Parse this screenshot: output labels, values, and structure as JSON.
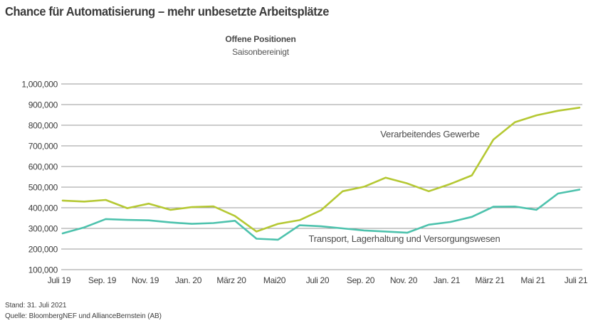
{
  "title": "Chance für Automatisierung – mehr unbesetzte Arbeitsplätze",
  "subtitle": {
    "line1": "Offene Positionen",
    "line2": "Saisonbereinigt"
  },
  "footer": {
    "stand": "Stand: 31. Juli 2021",
    "source": "Quelle: BloombergNEF und AllianceBernstein (AB)"
  },
  "colors": {
    "manufacturing_line": "#b5c833",
    "transport_line": "#4dc2ad",
    "gridline": "#9a9a9a",
    "text": "#3d3d3d"
  },
  "chart_data": {
    "type": "line",
    "title": "Offene Positionen",
    "subtitle": "Saisonbereinigt",
    "grid": true,
    "ylim": [
      100000,
      1000000
    ],
    "y_tick_step": 100000,
    "x_tick_labels": [
      "Juli 19",
      "Sep. 19",
      "Nov. 19",
      "Jan. 20",
      "März 20",
      "Mai20",
      "Juli 20",
      "Sep. 20",
      "Nov. 20",
      "Jan. 21",
      "März 21",
      "Mai 21",
      "Juli 21"
    ],
    "x_months": [
      "Juli 19",
      "Aug. 19",
      "Sep. 19",
      "Okt. 19",
      "Nov. 19",
      "Dez. 19",
      "Jan. 20",
      "Feb. 20",
      "März 20",
      "Apr. 20",
      "Mai 20",
      "Juni 20",
      "Juli 20",
      "Aug. 20",
      "Sep. 20",
      "Okt. 20",
      "Nov. 20",
      "Dez. 20",
      "Jan. 21",
      "Feb. 21",
      "März 21",
      "Apr. 21",
      "Mai 21",
      "Juni 21",
      "Juli 21"
    ],
    "series": [
      {
        "name": "Verarbeitendes Gewerbe",
        "color": "#b5c833",
        "values": [
          435000,
          430000,
          438000,
          398000,
          420000,
          390000,
          403000,
          407000,
          360000,
          285000,
          322000,
          340000,
          388000,
          480000,
          502000,
          546000,
          518000,
          480000,
          515000,
          557000,
          730000,
          815000,
          848000,
          870000,
          885000
        ]
      },
      {
        "name": "Transport, Lagerhaltung und Versorgungswesen",
        "color": "#4dc2ad",
        "values": [
          276000,
          305000,
          345000,
          341000,
          339000,
          329000,
          322000,
          326000,
          337000,
          250000,
          245000,
          315000,
          310000,
          300000,
          290000,
          285000,
          279000,
          318000,
          331000,
          356000,
          405000,
          406000,
          390000,
          469000,
          488000
        ]
      }
    ],
    "legend_position": "inline-labels"
  }
}
